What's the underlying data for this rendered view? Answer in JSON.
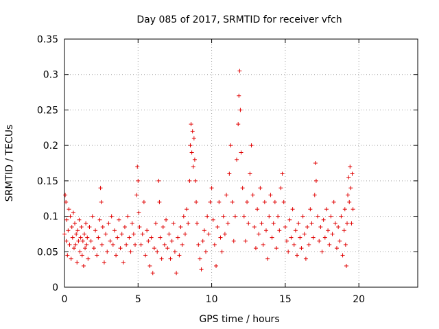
{
  "chart_data": {
    "type": "scatter",
    "title": "Day 085 of 2017, SRMTID for receiver vfch",
    "xlabel": "GPS time / hours",
    "ylabel": "SRMTID / TECUs",
    "xlim": [
      0,
      24
    ],
    "ylim": [
      0,
      0.35
    ],
    "xticks": [
      0,
      5,
      10,
      15,
      20
    ],
    "xtick_labels": [
      "0",
      "5",
      "10",
      "15",
      "20"
    ],
    "yticks": [
      0,
      0.05,
      0.1,
      0.15,
      0.2,
      0.25,
      0.3,
      0.35
    ],
    "ytick_labels": [
      "0",
      "0.05",
      "0.1",
      "0.15",
      "0.2",
      "0.25",
      "0.3",
      "0.35"
    ],
    "grid": true,
    "marker": "+",
    "color": "#e00000",
    "series": [
      {
        "name": "SRMTID",
        "points": [
          [
            0.0,
            0.075
          ],
          [
            0.05,
            0.13
          ],
          [
            0.1,
            0.12
          ],
          [
            0.12,
            0.065
          ],
          [
            0.15,
            0.095
          ],
          [
            0.2,
            0.045
          ],
          [
            0.25,
            0.08
          ],
          [
            0.3,
            0.11
          ],
          [
            0.35,
            0.06
          ],
          [
            0.4,
            0.1
          ],
          [
            0.45,
            0.04
          ],
          [
            0.5,
            0.085
          ],
          [
            0.55,
            0.07
          ],
          [
            0.6,
            0.105
          ],
          [
            0.65,
            0.055
          ],
          [
            0.7,
            0.09
          ],
          [
            0.75,
            0.06
          ],
          [
            0.8,
            0.075
          ],
          [
            0.85,
            0.035
          ],
          [
            0.9,
            0.08
          ],
          [
            0.95,
            0.065
          ],
          [
            1.0,
            0.095
          ],
          [
            1.05,
            0.05
          ],
          [
            1.1,
            0.07
          ],
          [
            1.15,
            0.085
          ],
          [
            1.2,
            0.045
          ],
          [
            1.25,
            0.065
          ],
          [
            1.3,
            0.03
          ],
          [
            1.35,
            0.075
          ],
          [
            1.4,
            0.055
          ],
          [
            1.45,
            0.09
          ],
          [
            1.5,
            0.06
          ],
          [
            1.55,
            0.07
          ],
          [
            1.6,
            0.04
          ],
          [
            1.7,
            0.085
          ],
          [
            1.8,
            0.065
          ],
          [
            1.9,
            0.1
          ],
          [
            2.0,
            0.055
          ],
          [
            2.1,
            0.08
          ],
          [
            2.2,
            0.045
          ],
          [
            2.3,
            0.07
          ],
          [
            2.4,
            0.095
          ],
          [
            2.45,
            0.14
          ],
          [
            2.5,
            0.12
          ],
          [
            2.55,
            0.06
          ],
          [
            2.6,
            0.085
          ],
          [
            2.7,
            0.035
          ],
          [
            2.8,
            0.075
          ],
          [
            2.9,
            0.05
          ],
          [
            3.0,
            0.09
          ],
          [
            3.1,
            0.065
          ],
          [
            3.2,
            0.1
          ],
          [
            3.3,
            0.06
          ],
          [
            3.4,
            0.08
          ],
          [
            3.5,
            0.045
          ],
          [
            3.6,
            0.07
          ],
          [
            3.7,
            0.095
          ],
          [
            3.8,
            0.055
          ],
          [
            3.9,
            0.075
          ],
          [
            4.0,
            0.035
          ],
          [
            4.1,
            0.085
          ],
          [
            4.2,
            0.06
          ],
          [
            4.3,
            0.1
          ],
          [
            4.4,
            0.07
          ],
          [
            4.5,
            0.05
          ],
          [
            4.6,
            0.09
          ],
          [
            4.7,
            0.075
          ],
          [
            4.8,
            0.06
          ],
          [
            4.9,
            0.13
          ],
          [
            4.95,
            0.17
          ],
          [
            5.0,
            0.15
          ],
          [
            5.05,
            0.105
          ],
          [
            5.1,
            0.085
          ],
          [
            5.2,
            0.06
          ],
          [
            5.3,
            0.075
          ],
          [
            5.4,
            0.12
          ],
          [
            5.5,
            0.045
          ],
          [
            5.6,
            0.08
          ],
          [
            5.7,
            0.065
          ],
          [
            5.8,
            0.03
          ],
          [
            5.9,
            0.07
          ],
          [
            6.0,
            0.02
          ],
          [
            6.1,
            0.055
          ],
          [
            6.2,
            0.09
          ],
          [
            6.3,
            0.05
          ],
          [
            6.4,
            0.15
          ],
          [
            6.45,
            0.12
          ],
          [
            6.5,
            0.07
          ],
          [
            6.6,
            0.04
          ],
          [
            6.7,
            0.085
          ],
          [
            6.8,
            0.06
          ],
          [
            6.9,
            0.095
          ],
          [
            7.0,
            0.055
          ],
          [
            7.1,
            0.075
          ],
          [
            7.2,
            0.04
          ],
          [
            7.3,
            0.065
          ],
          [
            7.4,
            0.09
          ],
          [
            7.5,
            0.05
          ],
          [
            7.6,
            0.02
          ],
          [
            7.7,
            0.07
          ],
          [
            7.8,
            0.045
          ],
          [
            7.9,
            0.085
          ],
          [
            8.0,
            0.06
          ],
          [
            8.1,
            0.1
          ],
          [
            8.2,
            0.075
          ],
          [
            8.3,
            0.11
          ],
          [
            8.4,
            0.09
          ],
          [
            8.5,
            0.15
          ],
          [
            8.55,
            0.2
          ],
          [
            8.6,
            0.23
          ],
          [
            8.65,
            0.19
          ],
          [
            8.7,
            0.22
          ],
          [
            8.75,
            0.17
          ],
          [
            8.8,
            0.21
          ],
          [
            8.85,
            0.18
          ],
          [
            8.9,
            0.15
          ],
          [
            8.95,
            0.12
          ],
          [
            9.0,
            0.09
          ],
          [
            9.1,
            0.06
          ],
          [
            9.2,
            0.04
          ],
          [
            9.3,
            0.025
          ],
          [
            9.4,
            0.065
          ],
          [
            9.5,
            0.08
          ],
          [
            9.6,
            0.05
          ],
          [
            9.7,
            0.1
          ],
          [
            9.8,
            0.075
          ],
          [
            9.9,
            0.12
          ],
          [
            10.0,
            0.14
          ],
          [
            10.1,
            0.095
          ],
          [
            10.2,
            0.06
          ],
          [
            10.3,
            0.03
          ],
          [
            10.4,
            0.085
          ],
          [
            10.5,
            0.12
          ],
          [
            10.6,
            0.07
          ],
          [
            10.7,
            0.05
          ],
          [
            10.8,
            0.1
          ],
          [
            10.9,
            0.075
          ],
          [
            11.0,
            0.13
          ],
          [
            11.1,
            0.09
          ],
          [
            11.2,
            0.16
          ],
          [
            11.3,
            0.2
          ],
          [
            11.4,
            0.12
          ],
          [
            11.5,
            0.065
          ],
          [
            11.6,
            0.1
          ],
          [
            11.7,
            0.18
          ],
          [
            11.8,
            0.23
          ],
          [
            11.85,
            0.27
          ],
          [
            11.9,
            0.305
          ],
          [
            11.95,
            0.25
          ],
          [
            12.0,
            0.19
          ],
          [
            12.1,
            0.14
          ],
          [
            12.2,
            0.1
          ],
          [
            12.3,
            0.065
          ],
          [
            12.4,
            0.12
          ],
          [
            12.5,
            0.09
          ],
          [
            12.6,
            0.16
          ],
          [
            12.7,
            0.2
          ],
          [
            12.8,
            0.13
          ],
          [
            12.9,
            0.085
          ],
          [
            13.0,
            0.055
          ],
          [
            13.1,
            0.11
          ],
          [
            13.2,
            0.075
          ],
          [
            13.3,
            0.14
          ],
          [
            13.4,
            0.09
          ],
          [
            13.5,
            0.06
          ],
          [
            13.6,
            0.12
          ],
          [
            13.7,
            0.08
          ],
          [
            13.8,
            0.04
          ],
          [
            13.9,
            0.1
          ],
          [
            14.0,
            0.13
          ],
          [
            14.1,
            0.07
          ],
          [
            14.2,
            0.09
          ],
          [
            14.3,
            0.12
          ],
          [
            14.4,
            0.055
          ],
          [
            14.5,
            0.1
          ],
          [
            14.6,
            0.08
          ],
          [
            14.7,
            0.14
          ],
          [
            14.8,
            0.16
          ],
          [
            14.9,
            0.12
          ],
          [
            15.0,
            0.085
          ],
          [
            15.1,
            0.065
          ],
          [
            15.2,
            0.05
          ],
          [
            15.3,
            0.095
          ],
          [
            15.4,
            0.07
          ],
          [
            15.5,
            0.11
          ],
          [
            15.6,
            0.06
          ],
          [
            15.7,
            0.08
          ],
          [
            15.8,
            0.045
          ],
          [
            15.9,
            0.09
          ],
          [
            16.0,
            0.07
          ],
          [
            16.1,
            0.055
          ],
          [
            16.2,
            0.1
          ],
          [
            16.3,
            0.075
          ],
          [
            16.4,
            0.04
          ],
          [
            16.5,
            0.085
          ],
          [
            16.6,
            0.06
          ],
          [
            16.7,
            0.11
          ],
          [
            16.8,
            0.09
          ],
          [
            16.9,
            0.07
          ],
          [
            17.0,
            0.13
          ],
          [
            17.05,
            0.175
          ],
          [
            17.1,
            0.15
          ],
          [
            17.2,
            0.1
          ],
          [
            17.3,
            0.065
          ],
          [
            17.4,
            0.085
          ],
          [
            17.5,
            0.05
          ],
          [
            17.6,
            0.095
          ],
          [
            17.7,
            0.07
          ],
          [
            17.8,
            0.11
          ],
          [
            17.9,
            0.08
          ],
          [
            18.0,
            0.06
          ],
          [
            18.1,
            0.1
          ],
          [
            18.2,
            0.075
          ],
          [
            18.3,
            0.12
          ],
          [
            18.4,
            0.09
          ],
          [
            18.5,
            0.055
          ],
          [
            18.6,
            0.085
          ],
          [
            18.7,
            0.065
          ],
          [
            18.8,
            0.1
          ],
          [
            18.9,
            0.045
          ],
          [
            19.0,
            0.08
          ],
          [
            19.05,
            0.11
          ],
          [
            19.1,
            0.06
          ],
          [
            19.15,
            0.03
          ],
          [
            19.2,
            0.09
          ],
          [
            19.25,
            0.13
          ],
          [
            19.3,
            0.155
          ],
          [
            19.35,
            0.12
          ],
          [
            19.4,
            0.17
          ],
          [
            19.45,
            0.14
          ],
          [
            19.5,
            0.09
          ],
          [
            19.55,
            0.16
          ],
          [
            19.6,
            0.11
          ]
        ]
      }
    ]
  }
}
